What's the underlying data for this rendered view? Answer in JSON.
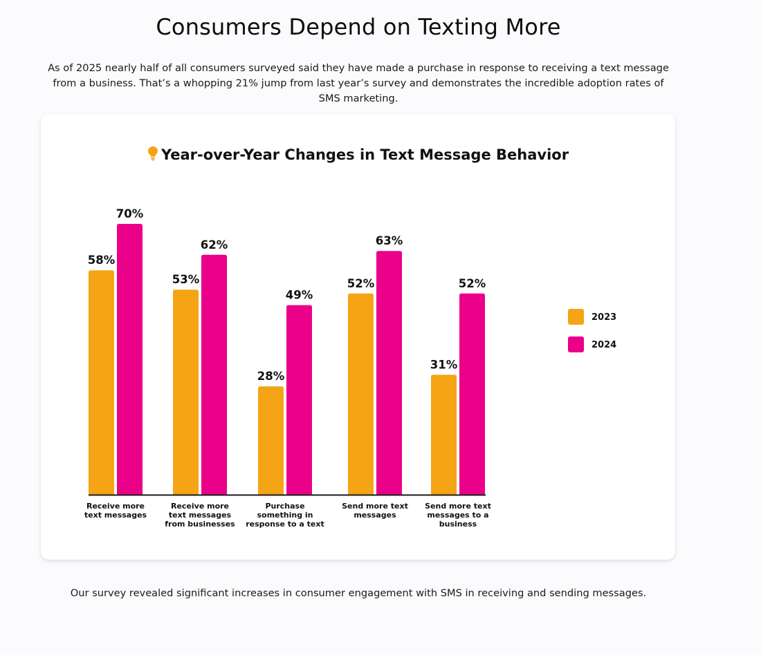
{
  "page": {
    "title": "Consumers Depend on Texting More",
    "intro": "As of 2025 nearly half of all consumers surveyed said they have made a purchase in response to receiving a text message from a business. That’s a whopping 21% jump from last year’s survey and demonstrates the incredible adoption rates of SMS marketing.",
    "outro": "Our survey revealed significant increases in consumer engagement with SMS in receiving and sending messages."
  },
  "colors": {
    "series_2023": "#f5a416",
    "series_2024": "#ea0089",
    "bulb": "#f5a416",
    "axis": "#1a1a1a"
  },
  "chart_data": {
    "type": "bar",
    "title": "Year-over-Year Changes in Text Message Behavior",
    "title_icon": "lightbulb-icon",
    "categories": [
      [
        "Receive more",
        "text messages"
      ],
      [
        "Receive more",
        "text messages",
        "from businesses"
      ],
      [
        "Purchase",
        "something in",
        "response to a text"
      ],
      [
        "Send more text",
        "messages"
      ],
      [
        "Send more text",
        "messages to a",
        "business"
      ]
    ],
    "series": [
      {
        "name": "2023",
        "values": [
          58,
          53,
          28,
          52,
          31
        ],
        "labels": [
          "58%",
          "53%",
          "28%",
          "52%",
          "31%"
        ]
      },
      {
        "name": "2024",
        "values": [
          70,
          62,
          49,
          63,
          52
        ],
        "labels": [
          "70%",
          "62%",
          "49%",
          "63%",
          "52%"
        ]
      }
    ],
    "unit": "%",
    "legend_position": "right",
    "grid": false
  }
}
